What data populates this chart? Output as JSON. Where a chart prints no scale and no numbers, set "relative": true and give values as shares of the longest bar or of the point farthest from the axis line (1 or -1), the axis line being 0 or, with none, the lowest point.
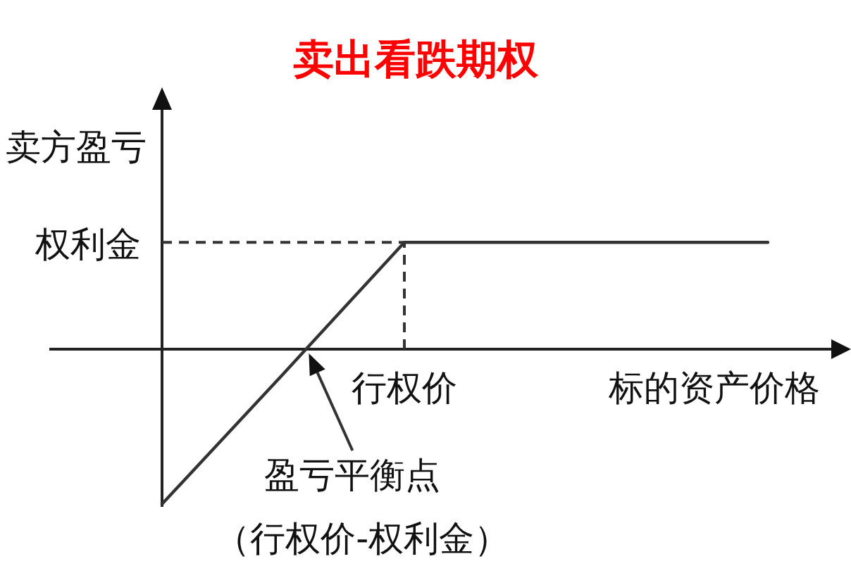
{
  "chart_data": {
    "type": "line",
    "title": "卖出看跌期权",
    "xlabel": "标的资产价格",
    "ylabel": "卖方盈亏",
    "relative": true,
    "categories": [
      null,
      null,
      null,
      null,
      null,
      null
    ],
    "series": [
      {
        "color": "#333333",
        "values": [
          -1,
          -0.16,
          0.69,
          0.69,
          0.69,
          0.69
        ]
      }
    ],
    "line_style": "solid",
    "ref_lines": [
      {
        "axis": "y",
        "value": 0.69,
        "label": "权利金",
        "line_style": "dashed",
        "color": "#333333"
      }
    ],
    "annotations": [
      "行权价",
      "盈亏平衡点",
      "（行权价-权利金）"
    ]
  }
}
